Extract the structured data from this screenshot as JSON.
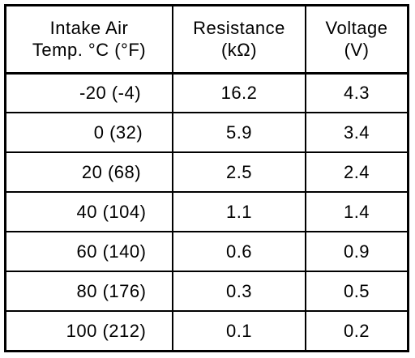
{
  "table": {
    "headers": [
      {
        "line1": "Intake Air",
        "line2": "Temp. °C (°F)"
      },
      {
        "line1": "Resistance",
        "line2": "(kΩ)"
      },
      {
        "line1": "Voltage",
        "line2": "(V)"
      }
    ],
    "rows": [
      {
        "temp": "-20 (-4)",
        "resistance": "16.2",
        "voltage": "4.3"
      },
      {
        "temp": "0 (32)",
        "resistance": "5.9",
        "voltage": "3.4"
      },
      {
        "temp": "20 (68)",
        "resistance": "2.5",
        "voltage": "2.4"
      },
      {
        "temp": "40 (104)",
        "resistance": "1.1",
        "voltage": "1.4"
      },
      {
        "temp": "60 (140)",
        "resistance": "0.6",
        "voltage": "0.9"
      },
      {
        "temp": "80 (176)",
        "resistance": "0.3",
        "voltage": "0.5"
      },
      {
        "temp": "100 (212)",
        "resistance": "0.1",
        "voltage": "0.2"
      }
    ]
  }
}
